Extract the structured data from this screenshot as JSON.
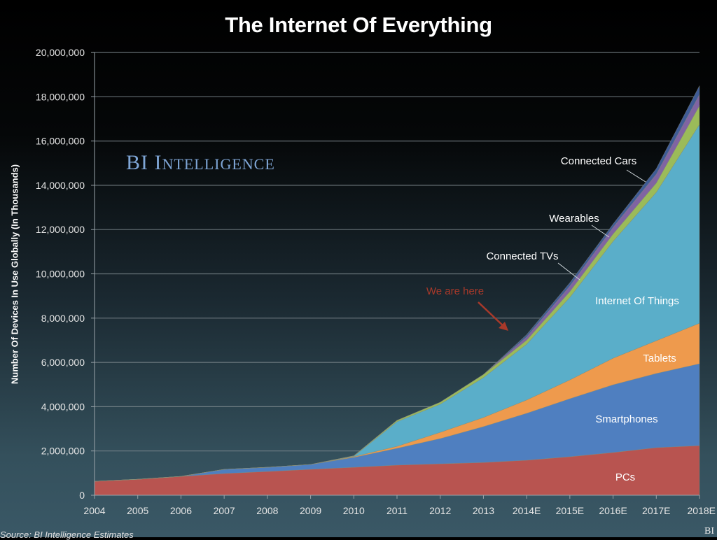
{
  "chart_data": {
    "type": "area",
    "stacked": true,
    "title": "The Internet Of Everything",
    "xlabel": "",
    "ylabel": "Number Of Devices In Use Globally (In Thousands)",
    "ylim": [
      0,
      20000000
    ],
    "yticks": [
      0,
      2000000,
      4000000,
      6000000,
      8000000,
      10000000,
      12000000,
      14000000,
      16000000,
      18000000,
      20000000
    ],
    "ytick_labels": [
      "0",
      "2,000,000",
      "4,000,000",
      "6,000,000",
      "8,000,000",
      "10,000,000",
      "12,000,000",
      "14,000,000",
      "16,000,000",
      "18,000,000",
      "20,000,000"
    ],
    "categories": [
      "2004",
      "2005",
      "2006",
      "2007",
      "2008",
      "2009",
      "2010",
      "2011",
      "2012",
      "2013",
      "2014E",
      "2015E",
      "2016E",
      "2017E",
      "2018E"
    ],
    "grid": true,
    "series": [
      {
        "name": "PCs",
        "color": "#b85450",
        "values": [
          630000,
          720000,
          850000,
          980000,
          1070000,
          1170000,
          1260000,
          1360000,
          1420000,
          1480000,
          1580000,
          1740000,
          1930000,
          2150000,
          2240000
        ]
      },
      {
        "name": "Smartphones",
        "color": "#4f7fc0",
        "values": [
          0,
          0,
          0,
          190000,
          190000,
          220000,
          450000,
          760000,
          1140000,
          1620000,
          2120000,
          2620000,
          3060000,
          3350000,
          3700000
        ]
      },
      {
        "name": "Tablets",
        "color": "#ee9a4d",
        "values": [
          0,
          0,
          0,
          0,
          0,
          0,
          30000,
          90000,
          280000,
          410000,
          600000,
          850000,
          1200000,
          1480000,
          1830000
        ]
      },
      {
        "name": "Internet Of Things",
        "color": "#5aaec9",
        "values": [
          0,
          0,
          0,
          0,
          0,
          0,
          20000,
          1110000,
          1270000,
          1800000,
          2520000,
          3730000,
          5280000,
          6700000,
          8980000
        ]
      },
      {
        "name": "Connected TVs",
        "color": "#9bbb59",
        "values": [
          0,
          0,
          0,
          0,
          0,
          0,
          20000,
          60000,
          90000,
          140000,
          180000,
          260000,
          330000,
          420000,
          850000
        ]
      },
      {
        "name": "Wearables",
        "color": "#8064a2",
        "values": [
          0,
          0,
          0,
          0,
          0,
          0,
          0,
          0,
          0,
          0,
          150000,
          250000,
          300000,
          400000,
          500000
        ]
      },
      {
        "name": "Connected Cars",
        "color": "#3f5b96",
        "values": [
          0,
          0,
          0,
          0,
          0,
          0,
          0,
          0,
          0,
          0,
          100000,
          150000,
          150000,
          250000,
          400000
        ]
      }
    ],
    "annotations": [
      {
        "text": "We are here",
        "color": "#a8392a"
      },
      {
        "text": "Connected Cars"
      },
      {
        "text": "Wearables"
      },
      {
        "text": "Connected TVs"
      },
      {
        "text": "Internet Of Things"
      },
      {
        "text": "Tablets"
      },
      {
        "text": "Smartphones"
      },
      {
        "text": "PCs"
      }
    ]
  },
  "header": {
    "title": "The Internet Of Everything"
  },
  "brand": {
    "prefix": "BI I",
    "rest": "NTELLIGENCE",
    "full": "BI Intelligence"
  },
  "footer": {
    "source": "Source: BI Intelligence Estimates",
    "mark": "BI"
  }
}
